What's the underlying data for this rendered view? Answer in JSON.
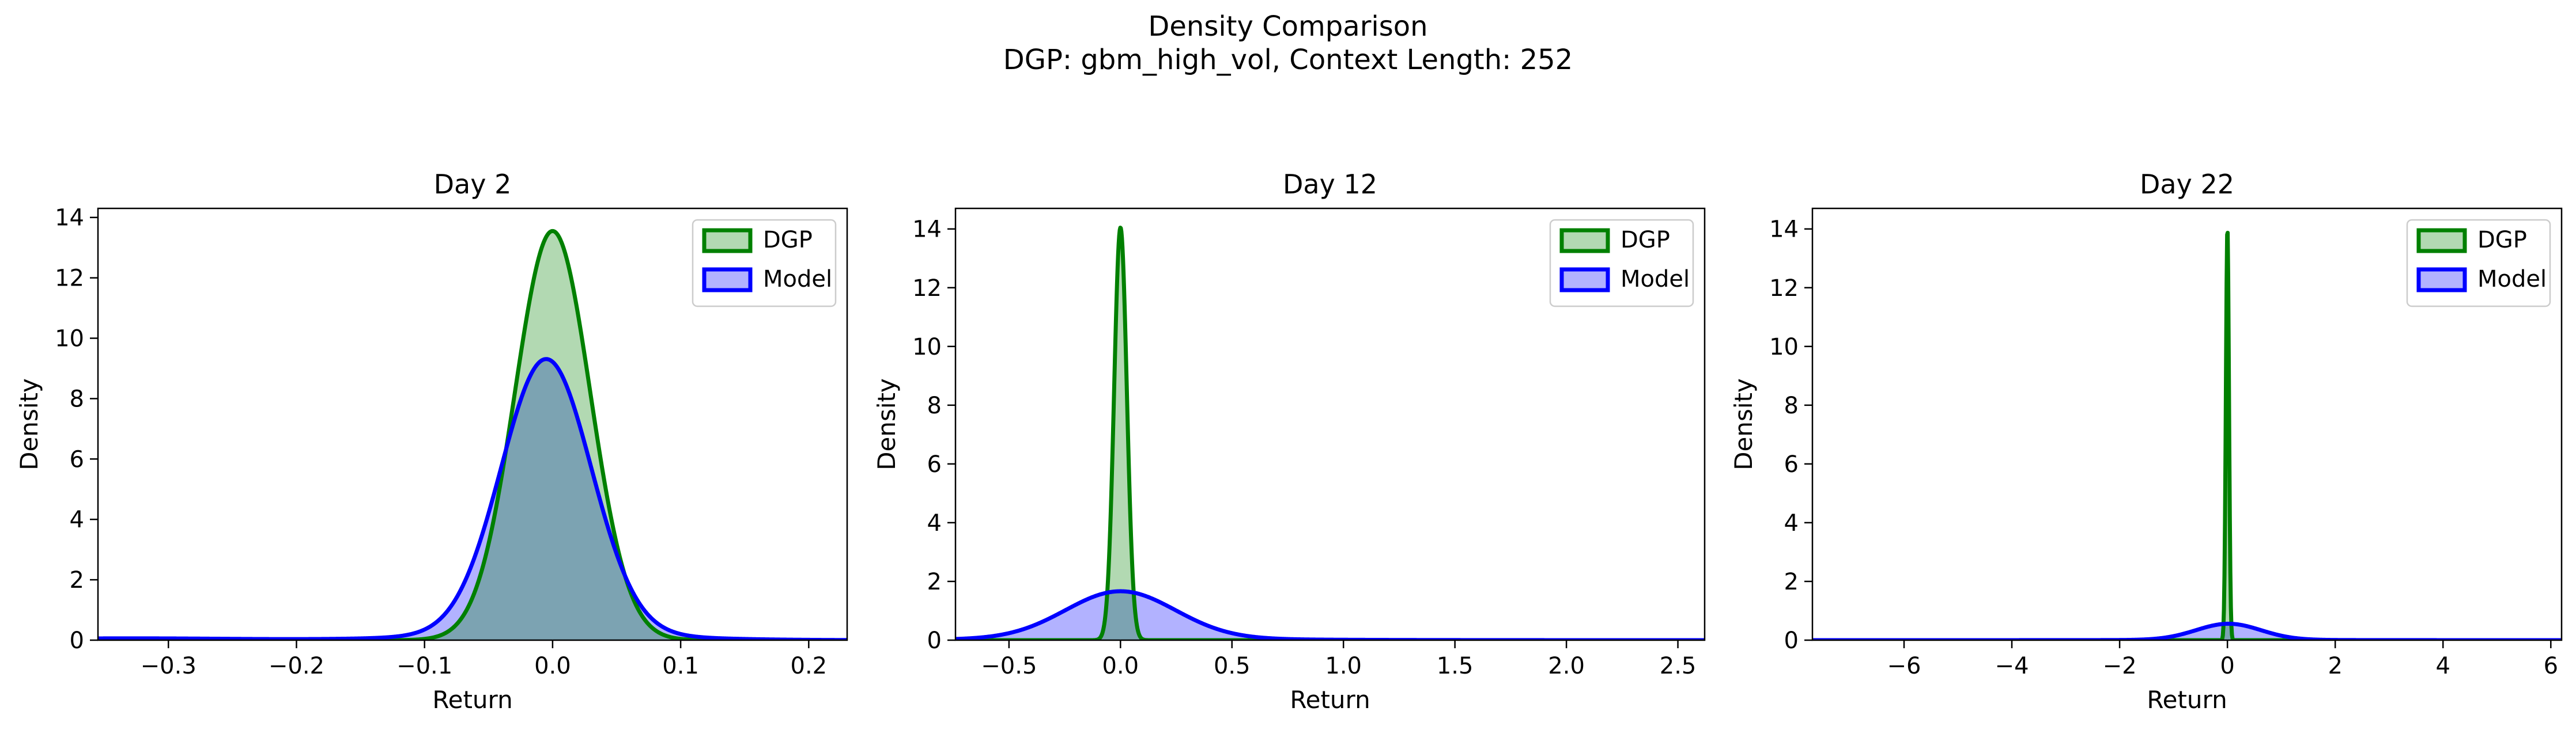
{
  "figure": {
    "title_line1": "Density Comparison",
    "title_line2": "DGP: gbm_high_vol, Context Length: 252"
  },
  "colors": {
    "dgp": "#008000",
    "model": "#0000ff",
    "dgp_fill": "rgba(0,128,0,0.3)",
    "model_fill": "rgba(0,0,255,0.3)"
  },
  "chart_data": [
    {
      "type": "area",
      "title": "Day 2",
      "xlabel": "Return",
      "ylabel": "Density",
      "xlim": [
        -0.355,
        0.23
      ],
      "ylim": [
        0,
        14.3
      ],
      "xticks": [
        -0.3,
        -0.2,
        -0.1,
        0.0,
        0.1,
        0.2
      ],
      "xtick_labels": [
        "−0.3",
        "−0.2",
        "−0.1",
        "0.0",
        "0.1",
        "0.2"
      ],
      "yticks": [
        0,
        2,
        4,
        6,
        8,
        10,
        12,
        14
      ],
      "ytick_labels": [
        "0",
        "2",
        "4",
        "6",
        "8",
        "10",
        "12",
        "14"
      ],
      "legend": "top-right",
      "series": [
        {
          "name": "DGP",
          "distribution": "normal",
          "mean": 0.0,
          "peak_density": 13.55
        },
        {
          "name": "Model",
          "distribution": "normal",
          "mean": -0.005,
          "peak_density": 9.1,
          "tail_peak_density": 0.6
        }
      ]
    },
    {
      "type": "area",
      "title": "Day 12",
      "xlabel": "Return",
      "ylabel": "Density",
      "xlim": [
        -0.74,
        2.62
      ],
      "ylim": [
        0,
        14.7
      ],
      "xticks": [
        -0.5,
        0.0,
        0.5,
        1.0,
        1.5,
        2.0,
        2.5
      ],
      "xtick_labels": [
        "−0.5",
        "0.0",
        "0.5",
        "1.0",
        "1.5",
        "2.0",
        "2.5"
      ],
      "yticks": [
        0,
        2,
        4,
        6,
        8,
        10,
        12,
        14
      ],
      "ytick_labels": [
        "0",
        "2",
        "4",
        "6",
        "8",
        "10",
        "12",
        "14"
      ],
      "legend": "top-right",
      "series": [
        {
          "name": "DGP",
          "distribution": "normal",
          "mean": 0.0,
          "peak_density": 14.05
        },
        {
          "name": "Model",
          "distribution": "normal",
          "mean": 0.0,
          "peak_density": 1.62,
          "tail_peak_density": 0.1
        }
      ]
    },
    {
      "type": "area",
      "title": "Day 22",
      "xlabel": "Return",
      "ylabel": "Density",
      "xlim": [
        -7.7,
        6.2
      ],
      "ylim": [
        0,
        14.7
      ],
      "xticks": [
        -6,
        -4,
        -2,
        0,
        2,
        4,
        6
      ],
      "xtick_labels": [
        "−6",
        "−4",
        "−2",
        "0",
        "2",
        "4",
        "6"
      ],
      "yticks": [
        0,
        2,
        4,
        6,
        8,
        10,
        12,
        14
      ],
      "ytick_labels": [
        "0",
        "2",
        "4",
        "6",
        "8",
        "10",
        "12",
        "14"
      ],
      "legend": "top-right",
      "series": [
        {
          "name": "DGP",
          "distribution": "normal",
          "mean": 0.0,
          "peak_density": 14.05
        },
        {
          "name": "Model",
          "distribution": "normal",
          "mean": 0.02,
          "peak_density": 0.55,
          "tail_peak_density": 0.02
        }
      ]
    }
  ]
}
